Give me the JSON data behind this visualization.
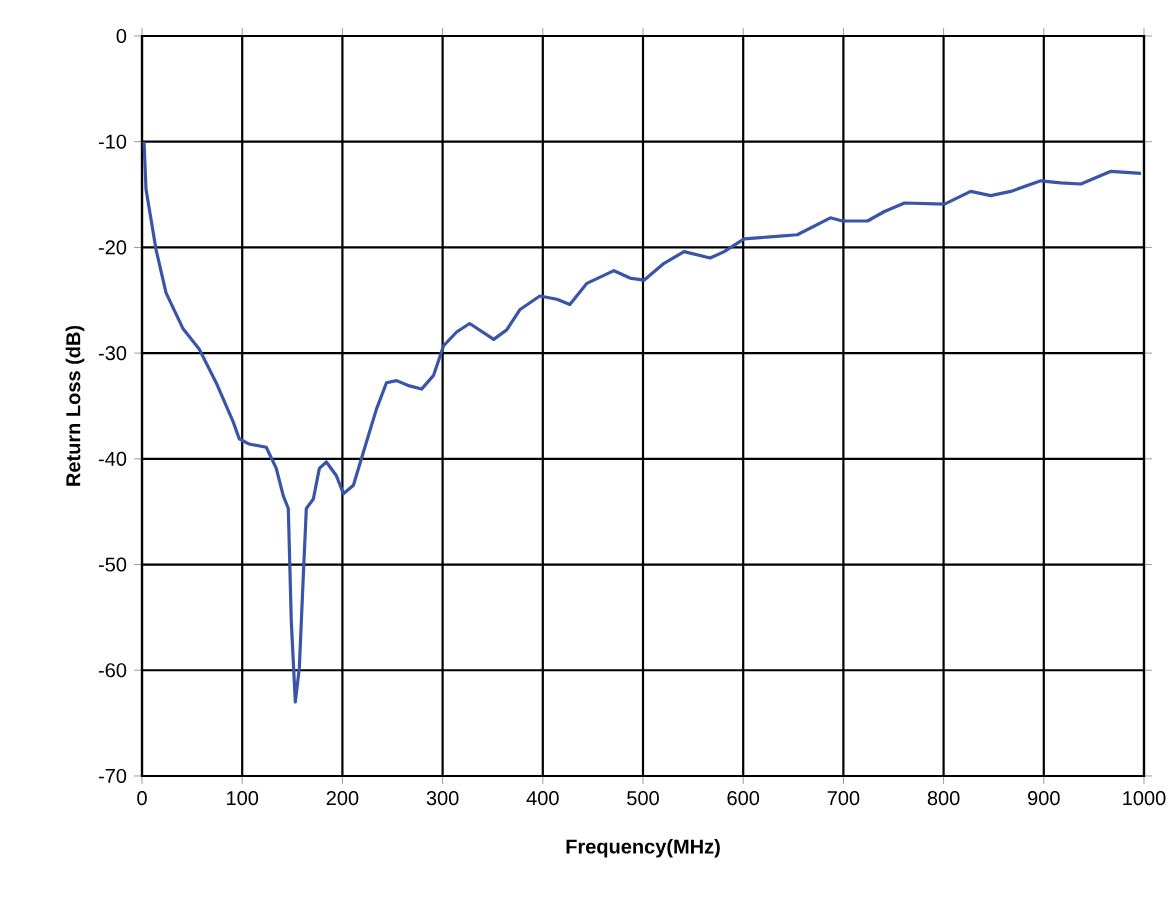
{
  "chart_data": {
    "type": "line",
    "xlabel": "Frequency(MHz)",
    "ylabel": "Return Loss (dB)",
    "xlim": [
      0,
      1000
    ],
    "xticks": [
      0,
      100,
      200,
      300,
      400,
      500,
      600,
      700,
      800,
      900,
      1000
    ],
    "ylim": [
      -70,
      0
    ],
    "yticks": [
      -70,
      -60,
      -50,
      -40,
      -30,
      -20,
      -10,
      0
    ],
    "grid": true,
    "marker": "none",
    "line_style": "solid",
    "series": [
      {
        "color": "#3a55a8",
        "x": [
          2,
          4,
          14,
          24,
          41,
          57,
          74,
          91,
          97,
          107,
          124,
          134,
          141,
          146,
          149,
          153,
          157,
          161,
          164,
          171,
          177,
          184,
          194,
          201,
          211,
          224,
          234,
          244,
          254,
          267,
          279,
          291,
          301,
          314,
          327,
          351,
          364,
          377,
          397,
          414,
          427,
          444,
          471,
          487,
          501,
          521,
          541,
          567,
          581,
          601,
          627,
          654,
          687,
          699,
          724,
          741,
          761,
          801,
          827,
          847,
          867,
          897,
          917,
          937,
          967,
          997
        ],
        "values": [
          -10,
          -14.5,
          -20.2,
          -24.3,
          -27.7,
          -29.6,
          -32.8,
          -36.5,
          -38.1,
          -38.6,
          -38.9,
          -40.9,
          -43.5,
          -44.7,
          -55.4,
          -63,
          -59.8,
          -51,
          -44.7,
          -43.8,
          -40.9,
          -40.3,
          -41.6,
          -43.3,
          -42.5,
          -38.4,
          -35.3,
          -32.8,
          -32.6,
          -33.1,
          -33.4,
          -32.1,
          -29.3,
          -28,
          -27.2,
          -28.7,
          -27.8,
          -25.9,
          -24.6,
          -24.9,
          -25.4,
          -23.4,
          -22.2,
          -22.9,
          -23.1,
          -21.5,
          -20.4,
          -21,
          -20.4,
          -19.2,
          -19,
          -18.8,
          -17.2,
          -17.5,
          -17.5,
          -16.6,
          -15.8,
          -15.9,
          -14.7,
          -15.1,
          -14.7,
          -13.7,
          -13.9,
          -14,
          -12.8,
          -13
        ]
      }
    ]
  }
}
